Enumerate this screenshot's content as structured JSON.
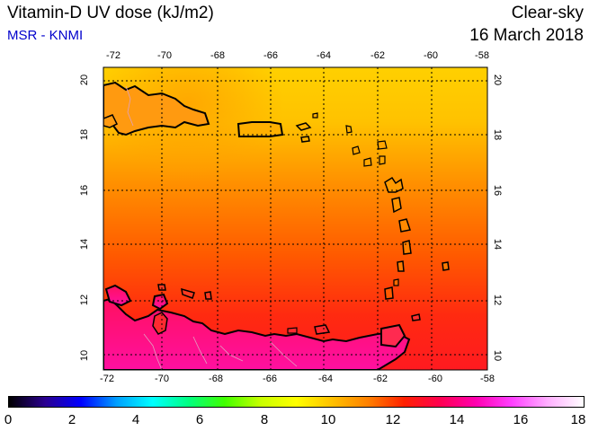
{
  "header": {
    "title": "Vitamin-D UV dose (kJ/m2)",
    "source": "MSR - KNMI",
    "mode": "Clear-sky",
    "date": "16 March 2018"
  },
  "axes": {
    "lon_ticks": [
      "-72",
      "-70",
      "-68",
      "-66",
      "-64",
      "-62",
      "-60",
      "-58"
    ],
    "lat_ticks": [
      "20",
      "18",
      "16",
      "14",
      "12",
      "10"
    ],
    "lon_range": [
      -72.1,
      -57.7
    ],
    "lat_range": [
      9.6,
      20.5
    ],
    "grid": true
  },
  "colorbar": {
    "labels": [
      "0",
      "2",
      "4",
      "6",
      "8",
      "10",
      "12",
      "14",
      "16",
      "18"
    ],
    "range": [
      0,
      18
    ],
    "colors": [
      "#000000",
      "#2a0090",
      "#0000ff",
      "#00a0ff",
      "#00ffff",
      "#00ff80",
      "#40ff00",
      "#c8ff00",
      "#ffff00",
      "#ffc000",
      "#ff8000",
      "#ff2000",
      "#ff0050",
      "#ff00b0",
      "#ff40ff",
      "#ffb0ff",
      "#ffffff"
    ]
  },
  "field": {
    "description_colors": {
      "north": "#ffd400",
      "middle": "#ff7a00",
      "south": "#ff2a30",
      "coast_south": "#ff1080"
    }
  }
}
